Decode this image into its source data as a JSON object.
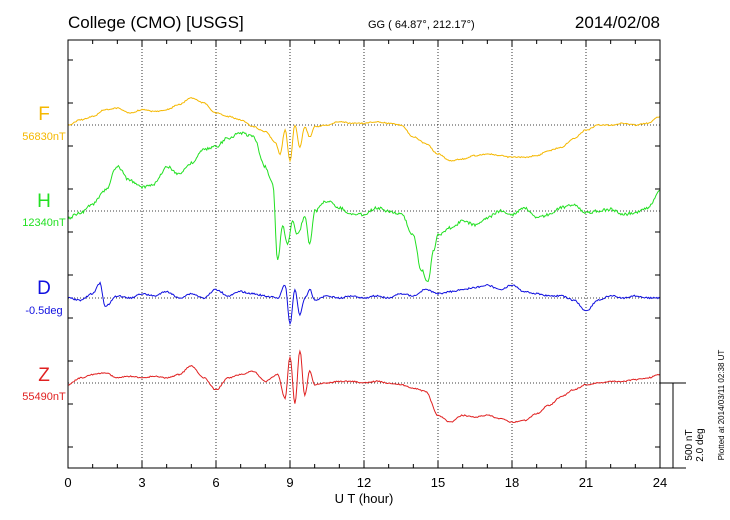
{
  "header": {
    "station": "College (CMO)  [USGS]",
    "coords": "GG ( 64.87°, 212.17°)",
    "date": "2014/02/08"
  },
  "footer": {
    "plotted": "Plotted at 2014/03/11 02:38 UT"
  },
  "scale": {
    "nt": "500 nT",
    "deg": "2.0 deg"
  },
  "chart_data": {
    "type": "line",
    "xlabel": "U T (hour)",
    "xlim": [
      0,
      24
    ],
    "xticks": [
      0,
      3,
      6,
      9,
      12,
      15,
      18,
      21,
      24
    ],
    "xtick_labels": [
      "0",
      "3",
      "6",
      "9",
      "12",
      "15",
      "18",
      "21",
      "24"
    ],
    "grid": true,
    "scale_bar_nT": 500,
    "scale_bar_deg": 2.0,
    "series": [
      {
        "name": "F",
        "baseline_label": "56830nT",
        "baseline": 56830,
        "unit": "nT",
        "color": "#f5b800",
        "x": [
          0,
          0.5,
          1,
          1.5,
          2,
          2.5,
          3,
          3.5,
          4,
          4.5,
          5,
          5.5,
          6,
          6.5,
          7,
          7.5,
          8,
          8.4,
          8.6,
          8.8,
          9,
          9.2,
          9.4,
          9.6,
          9.8,
          10,
          10.5,
          11,
          11.5,
          12,
          12.5,
          13,
          13.5,
          14,
          14.5,
          15,
          15.5,
          16,
          16.5,
          17,
          17.5,
          18,
          18.5,
          19,
          19.5,
          20,
          20.5,
          21,
          21.5,
          22,
          22.5,
          23,
          23.5,
          24
        ],
        "values": [
          56830,
          56860,
          56880,
          56920,
          56930,
          56900,
          56920,
          56910,
          56920,
          56950,
          56990,
          56960,
          56900,
          56880,
          56860,
          56820,
          56790,
          56730,
          56660,
          56800,
          56620,
          56830,
          56700,
          56820,
          56760,
          56820,
          56830,
          56850,
          56840,
          56840,
          56850,
          56840,
          56830,
          56760,
          56720,
          56660,
          56620,
          56630,
          56650,
          56660,
          56650,
          56640,
          56640,
          56650,
          56680,
          56700,
          56750,
          56800,
          56830,
          56830,
          56840,
          56830,
          56840,
          56880
        ]
      },
      {
        "name": "H",
        "baseline_label": "12340nT",
        "baseline": 12340,
        "unit": "nT",
        "color": "#22e022",
        "x": [
          0,
          0.5,
          1,
          1.5,
          2,
          2.5,
          3,
          3.5,
          4,
          4.5,
          5,
          5.5,
          6,
          6.5,
          7,
          7.5,
          8,
          8.3,
          8.5,
          8.7,
          8.9,
          9.1,
          9.3,
          9.6,
          9.8,
          10,
          10.5,
          11,
          11.5,
          12,
          12.5,
          13,
          13.5,
          14,
          14.3,
          14.6,
          14.8,
          15,
          15.5,
          16,
          16.5,
          17,
          17.5,
          18,
          18.5,
          19,
          19.5,
          20,
          20.5,
          21,
          21.5,
          22,
          22.5,
          23,
          23.5,
          24
        ],
        "values": [
          12300,
          12330,
          12380,
          12460,
          12600,
          12520,
          12480,
          12500,
          12600,
          12560,
          12620,
          12700,
          12720,
          12770,
          12800,
          12780,
          12600,
          12500,
          12050,
          12250,
          12150,
          12280,
          12200,
          12300,
          12150,
          12340,
          12400,
          12360,
          12320,
          12320,
          12360,
          12340,
          12320,
          12200,
          12000,
          11920,
          12100,
          12200,
          12240,
          12280,
          12260,
          12300,
          12340,
          12320,
          12360,
          12300,
          12320,
          12360,
          12380,
          12330,
          12340,
          12350,
          12320,
          12330,
          12360,
          12460
        ]
      },
      {
        "name": "D",
        "baseline_label": "-0.5deg",
        "baseline": -0.5,
        "unit": "deg",
        "color": "#1010e0",
        "x": [
          0,
          0.5,
          1,
          1.3,
          1.5,
          2,
          2.5,
          3,
          3.5,
          4,
          4.5,
          5,
          5.5,
          6,
          6.5,
          7,
          7.5,
          8,
          8.5,
          8.8,
          9,
          9.2,
          9.4,
          9.6,
          9.8,
          10,
          10.5,
          11,
          11.5,
          12,
          12.5,
          13,
          13.5,
          14,
          14.5,
          15,
          15.5,
          16,
          16.5,
          17,
          17.5,
          18,
          18.5,
          19,
          19.5,
          20,
          20.5,
          21,
          21.5,
          22,
          22.5,
          23,
          23.5,
          24
        ],
        "values": [
          -0.5,
          -0.55,
          -0.4,
          -0.15,
          -0.7,
          -0.45,
          -0.5,
          -0.4,
          -0.45,
          -0.35,
          -0.5,
          -0.4,
          -0.5,
          -0.3,
          -0.45,
          -0.35,
          -0.4,
          -0.45,
          -0.5,
          -0.2,
          -1.1,
          -0.3,
          -0.9,
          -0.5,
          -0.3,
          -0.55,
          -0.45,
          -0.5,
          -0.45,
          -0.5,
          -0.45,
          -0.5,
          -0.4,
          -0.45,
          -0.3,
          -0.4,
          -0.35,
          -0.3,
          -0.25,
          -0.2,
          -0.3,
          -0.2,
          -0.35,
          -0.4,
          -0.45,
          -0.45,
          -0.55,
          -0.8,
          -0.55,
          -0.45,
          -0.5,
          -0.45,
          -0.5,
          -0.5
        ]
      },
      {
        "name": "Z",
        "baseline_label": "55490nT",
        "baseline": 55490,
        "unit": "nT",
        "color": "#e02020",
        "x": [
          0,
          0.5,
          1,
          1.5,
          2,
          2.5,
          3,
          3.5,
          4,
          4.5,
          5,
          5.5,
          6,
          6.5,
          7,
          7.5,
          8,
          8.5,
          8.8,
          9,
          9.2,
          9.4,
          9.6,
          9.8,
          10,
          10.5,
          11,
          11.5,
          12,
          12.5,
          13,
          13.5,
          14,
          14.5,
          15,
          15.5,
          16,
          16.5,
          17,
          17.5,
          18,
          18.5,
          19,
          19.5,
          20,
          20.5,
          21,
          21.5,
          22,
          22.5,
          23,
          23.5,
          24
        ],
        "values": [
          55480,
          55520,
          55540,
          55550,
          55520,
          55530,
          55520,
          55530,
          55520,
          55540,
          55590,
          55520,
          55450,
          55520,
          55540,
          55560,
          55500,
          55540,
          55400,
          55640,
          55370,
          55680,
          55420,
          55560,
          55480,
          55490,
          55500,
          55500,
          55490,
          55500,
          55490,
          55480,
          55460,
          55440,
          55300,
          55260,
          55300,
          55290,
          55300,
          55280,
          55260,
          55270,
          55310,
          55360,
          55410,
          55450,
          55480,
          55490,
          55500,
          55500,
          55510,
          55520,
          55540
        ]
      }
    ]
  }
}
